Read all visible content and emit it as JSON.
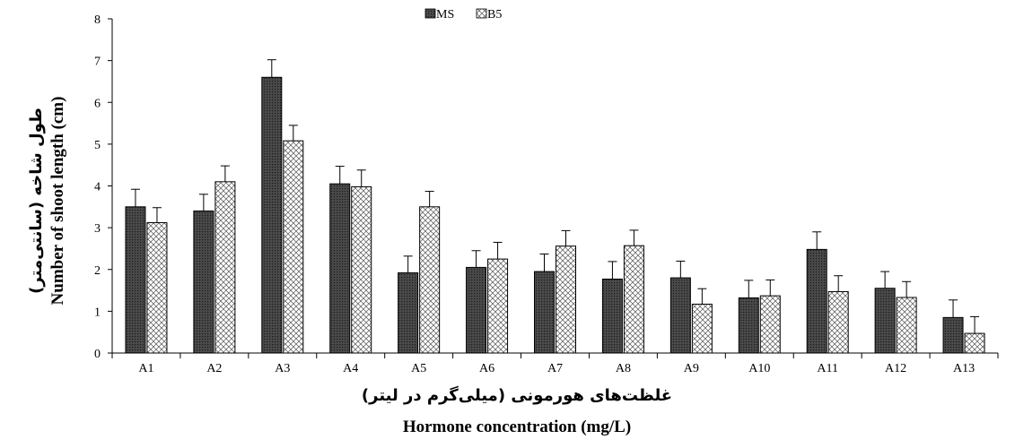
{
  "chart_data": {
    "type": "bar",
    "categories": [
      "A1",
      "A2",
      "A3",
      "A4",
      "A5",
      "A6",
      "A7",
      "A8",
      "A9",
      "A10",
      "A11",
      "A12",
      "A13"
    ],
    "series": [
      {
        "name": "MS",
        "values": [
          3.5,
          3.4,
          6.6,
          4.05,
          1.92,
          2.05,
          1.95,
          1.77,
          1.8,
          1.32,
          2.48,
          1.55,
          0.85
        ],
        "errors": [
          0.42,
          0.4,
          0.42,
          0.42,
          0.4,
          0.4,
          0.42,
          0.42,
          0.4,
          0.42,
          0.42,
          0.4,
          0.42
        ]
      },
      {
        "name": "B5",
        "values": [
          3.12,
          4.1,
          5.08,
          3.98,
          3.5,
          2.25,
          2.56,
          2.57,
          1.17,
          1.37,
          1.47,
          1.33,
          0.47
        ],
        "errors": [
          0.36,
          0.38,
          0.37,
          0.4,
          0.37,
          0.4,
          0.37,
          0.37,
          0.37,
          0.38,
          0.38,
          0.38,
          0.4
        ]
      }
    ],
    "ylim": [
      0,
      8
    ],
    "yticks": [
      "0",
      "1",
      "2",
      "3",
      "4",
      "5",
      "6",
      "7",
      "8"
    ],
    "ylabel_fa": "طول شاخه (سانتی‌متر)",
    "ylabel_en": "Number of shoot length (cm)",
    "xlabel_fa": "غلظت‌های هورمونی (میلی‌گرم در لیتر)",
    "xlabel_en": "Hormone concentration (mg/L)",
    "legend_position": "top-center",
    "grid": false,
    "colors": {
      "MS": "#3a3a3a",
      "B5": "#ffffff",
      "axis": "#000000"
    }
  }
}
